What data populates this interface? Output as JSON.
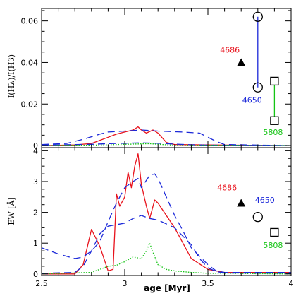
{
  "chart_data": [
    {
      "type": "line",
      "name": "top",
      "ylabel": "I(Hλ)/I(Hβ)",
      "xlim": [
        2.5,
        4.0
      ],
      "ylim": [
        -0.001,
        0.066
      ],
      "y_ticks": [
        {
          "v": 0,
          "label": "0"
        },
        {
          "v": 0.02,
          "label": "0.02"
        },
        {
          "v": 0.04,
          "label": "0.04"
        },
        {
          "v": 0.06,
          "label": "0.06"
        }
      ],
      "y_minor": [
        0.005,
        0.01,
        0.015,
        0.025,
        0.03,
        0.035,
        0.045,
        0.05,
        0.055,
        0.065
      ],
      "series": [
        {
          "color": "#e8121c",
          "style": "solid",
          "x": [
            2.5,
            2.7,
            2.8,
            2.9,
            2.95,
            3.0,
            3.05,
            3.08,
            3.1,
            3.13,
            3.17,
            3.2,
            3.25,
            3.3,
            3.5,
            4.0
          ],
          "y": [
            0,
            0.0003,
            0.001,
            0.004,
            0.0055,
            0.0065,
            0.0075,
            0.009,
            0.0075,
            0.006,
            0.0075,
            0.006,
            0.0015,
            0.0005,
            0.0003,
            0
          ]
        },
        {
          "color": "#1b28d9",
          "style": "dashed",
          "x": [
            2.5,
            2.65,
            2.75,
            2.85,
            2.9,
            3.0,
            3.1,
            3.2,
            3.35,
            3.45,
            3.5,
            3.55,
            3.6,
            4.0
          ],
          "y": [
            0.0005,
            0.001,
            0.003,
            0.0055,
            0.0065,
            0.007,
            0.0075,
            0.007,
            0.0065,
            0.006,
            0.004,
            0.002,
            0.0005,
            0
          ],
          "dash": "10,6"
        },
        {
          "color": "#1b28d9",
          "style": "dashed",
          "x": [
            2.5,
            2.8,
            2.9,
            3.0,
            3.1,
            3.2,
            3.3,
            3.4,
            3.5,
            4.0
          ],
          "y": [
            0.0002,
            0.0006,
            0.0009,
            0.0011,
            0.0013,
            0.0011,
            0.0007,
            0.0004,
            0.0002,
            0
          ],
          "dash": "10,6"
        },
        {
          "color": "#14c414",
          "style": "dotted",
          "x": [
            2.5,
            2.8,
            2.9,
            3.0,
            3.1,
            3.15,
            3.2,
            3.3,
            4.0
          ],
          "y": [
            0,
            0.0002,
            0.0004,
            0.0006,
            0.0008,
            0.0009,
            0.0006,
            0.0002,
            0
          ]
        }
      ],
      "observations": [
        {
          "label": "4686",
          "label_color": "#e8121c",
          "marker": "triangle",
          "x": 3.7,
          "y": 0.04
        },
        {
          "label": "4650",
          "label_color": "#1b28d9",
          "marker": "circle",
          "x": 3.8,
          "y": 0.028,
          "x2": 3.8,
          "y2": 0.062,
          "line_color": "#1b28d9"
        },
        {
          "label": "5808",
          "label_color": "#14c414",
          "marker": "square",
          "x": 3.9,
          "y": 0.012,
          "x2": 3.9,
          "y2": 0.031,
          "line_color": "#14c414"
        }
      ]
    },
    {
      "type": "line",
      "name": "bottom",
      "xlabel": "age [Myr]",
      "ylabel": "EW [Å]",
      "xlim": [
        2.5,
        4.0
      ],
      "ylim": [
        -0.05,
        4.1
      ],
      "x_ticks": [
        {
          "v": 2.5,
          "label": "2.5"
        },
        {
          "v": 3.0,
          "label": "3"
        },
        {
          "v": 3.5,
          "label": "3.5"
        },
        {
          "v": 4.0,
          "label": "4"
        }
      ],
      "x_minor": [
        2.6,
        2.7,
        2.8,
        2.9,
        3.1,
        3.2,
        3.3,
        3.4,
        3.6,
        3.7,
        3.8,
        3.9
      ],
      "y_ticks": [
        {
          "v": 0,
          "label": "0"
        },
        {
          "v": 1,
          "label": "1"
        },
        {
          "v": 2,
          "label": "2"
        },
        {
          "v": 3,
          "label": "3"
        },
        {
          "v": 4,
          "label": "4"
        }
      ],
      "y_minor": [
        0.25,
        0.5,
        0.75,
        1.25,
        1.5,
        1.75,
        2.25,
        2.5,
        2.75,
        3.25,
        3.5,
        3.75
      ],
      "series": [
        {
          "color": "#e8121c",
          "style": "solid",
          "x": [
            2.5,
            2.7,
            2.75,
            2.8,
            2.85,
            2.9,
            2.93,
            2.95,
            2.97,
            3.0,
            3.02,
            3.04,
            3.06,
            3.08,
            3.1,
            3.13,
            3.15,
            3.18,
            3.2,
            3.25,
            3.3,
            3.35,
            3.4,
            3.5,
            3.6,
            4.0
          ],
          "y": [
            0,
            0,
            0.3,
            1.45,
            0.9,
            0.1,
            0.15,
            2.6,
            2.2,
            2.5,
            3.3,
            2.8,
            3.5,
            3.9,
            2.9,
            2.2,
            1.8,
            2.4,
            2.3,
            1.9,
            1.5,
            1.0,
            0.5,
            0.15,
            0.05,
            0.05
          ]
        },
        {
          "color": "#1b28d9",
          "style": "dashed",
          "x": [
            2.5,
            2.6,
            2.7,
            2.75,
            2.8,
            2.85,
            2.9,
            2.95,
            3.0,
            3.05,
            3.08,
            3.1,
            3.15,
            3.18,
            3.2,
            3.25,
            3.3,
            3.35,
            3.4,
            3.5,
            3.55,
            3.6,
            4.0
          ],
          "y": [
            0.85,
            0.65,
            0.5,
            0.55,
            0.75,
            1.05,
            1.7,
            2.3,
            2.8,
            3.0,
            3.1,
            2.8,
            3.2,
            3.25,
            3.1,
            2.5,
            1.9,
            1.4,
            0.85,
            0.3,
            0.1,
            0.05,
            0.05
          ],
          "dash": "10,6"
        },
        {
          "color": "#1b28d9",
          "style": "dashed",
          "x": [
            2.5,
            2.7,
            2.75,
            2.8,
            2.85,
            2.9,
            2.95,
            3.0,
            3.05,
            3.1,
            3.15,
            3.2,
            3.3,
            3.4,
            3.45,
            3.5,
            3.55,
            3.6,
            4.0
          ],
          "y": [
            0.02,
            0.05,
            0.25,
            0.75,
            1.3,
            1.55,
            1.6,
            1.65,
            1.8,
            1.9,
            1.8,
            1.75,
            1.5,
            0.95,
            0.5,
            0.2,
            0.08,
            0.03,
            0.02
          ],
          "dash": "10,6"
        },
        {
          "color": "#14c414",
          "style": "dotted",
          "x": [
            2.5,
            2.8,
            2.85,
            2.9,
            2.95,
            3.0,
            3.05,
            3.1,
            3.13,
            3.15,
            3.17,
            3.2,
            3.25,
            3.3,
            3.4,
            3.5,
            4.0
          ],
          "y": [
            0,
            0.05,
            0.15,
            0.25,
            0.28,
            0.4,
            0.55,
            0.5,
            0.75,
            1.0,
            0.7,
            0.3,
            0.15,
            0.1,
            0.05,
            0.02,
            0
          ]
        }
      ],
      "observations": [
        {
          "label": "4686",
          "label_color": "#e8121c",
          "marker": "triangle",
          "x": 3.7,
          "y": 2.3
        },
        {
          "label": "4650",
          "label_color": "#1b28d9",
          "marker": "circle",
          "x": 3.8,
          "y": 1.85
        },
        {
          "label": "5808",
          "label_color": "#14c414",
          "marker": "square",
          "x": 3.9,
          "y": 1.35
        }
      ]
    }
  ]
}
